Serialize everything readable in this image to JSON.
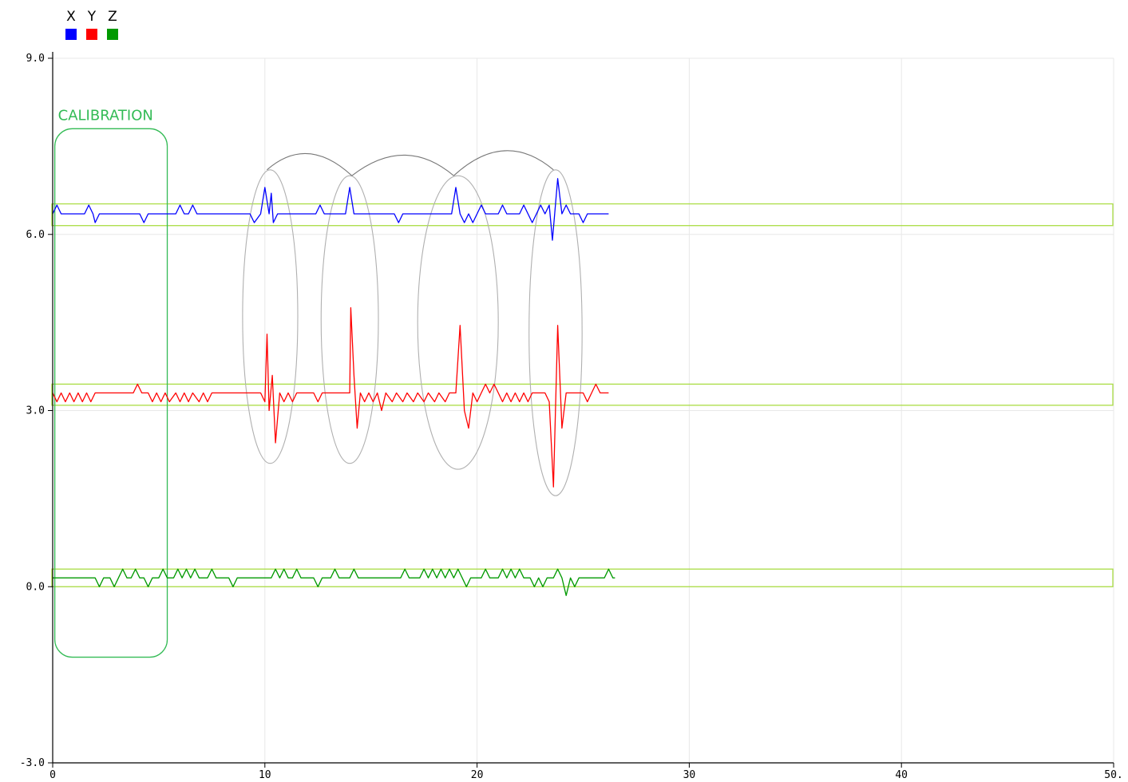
{
  "chart_data": {
    "type": "line",
    "xlim": [
      0,
      50
    ],
    "ylim": [
      -3,
      9
    ],
    "x_ticks": [
      0,
      10,
      20,
      30,
      40,
      50
    ],
    "x_tick_labels": [
      "0",
      "10",
      "20",
      "30",
      "40",
      "50."
    ],
    "y_ticks": [
      -3,
      0,
      3,
      6,
      9
    ],
    "y_tick_labels": [
      "-3.0",
      "0.0",
      "3.0",
      "6.0",
      "9.0"
    ],
    "grid": true,
    "legend_position": "top-left",
    "series": [
      {
        "name": "X",
        "color": "#0000ff",
        "points": [
          [
            0,
            6.35
          ],
          [
            0.2,
            6.5
          ],
          [
            0.4,
            6.35
          ],
          [
            1.5,
            6.35
          ],
          [
            1.7,
            6.5
          ],
          [
            1.9,
            6.35
          ],
          [
            2.0,
            6.2
          ],
          [
            2.2,
            6.35
          ],
          [
            4.1,
            6.35
          ],
          [
            4.3,
            6.2
          ],
          [
            4.5,
            6.35
          ],
          [
            5.8,
            6.35
          ],
          [
            6.0,
            6.5
          ],
          [
            6.2,
            6.35
          ],
          [
            6.4,
            6.35
          ],
          [
            6.6,
            6.5
          ],
          [
            6.8,
            6.35
          ],
          [
            9.3,
            6.35
          ],
          [
            9.5,
            6.2
          ],
          [
            9.8,
            6.35
          ],
          [
            10.0,
            6.8
          ],
          [
            10.2,
            6.35
          ],
          [
            10.3,
            6.7
          ],
          [
            10.4,
            6.2
          ],
          [
            10.6,
            6.35
          ],
          [
            12.4,
            6.35
          ],
          [
            12.6,
            6.5
          ],
          [
            12.8,
            6.35
          ],
          [
            13.8,
            6.35
          ],
          [
            14.0,
            6.8
          ],
          [
            14.2,
            6.35
          ],
          [
            16.1,
            6.35
          ],
          [
            16.3,
            6.2
          ],
          [
            16.5,
            6.35
          ],
          [
            18.8,
            6.35
          ],
          [
            19.0,
            6.8
          ],
          [
            19.2,
            6.35
          ],
          [
            19.4,
            6.2
          ],
          [
            19.6,
            6.35
          ],
          [
            19.8,
            6.2
          ],
          [
            20.0,
            6.35
          ],
          [
            20.2,
            6.5
          ],
          [
            20.4,
            6.35
          ],
          [
            21.0,
            6.35
          ],
          [
            21.2,
            6.5
          ],
          [
            21.4,
            6.35
          ],
          [
            22.0,
            6.35
          ],
          [
            22.2,
            6.5
          ],
          [
            22.4,
            6.35
          ],
          [
            22.6,
            6.2
          ],
          [
            22.8,
            6.35
          ],
          [
            23.0,
            6.5
          ],
          [
            23.2,
            6.35
          ],
          [
            23.4,
            6.5
          ],
          [
            23.55,
            5.9
          ],
          [
            23.8,
            6.95
          ],
          [
            24.0,
            6.35
          ],
          [
            24.2,
            6.5
          ],
          [
            24.4,
            6.35
          ],
          [
            24.8,
            6.35
          ],
          [
            25.0,
            6.2
          ],
          [
            25.2,
            6.35
          ],
          [
            26.2,
            6.35
          ]
        ]
      },
      {
        "name": "Y",
        "color": "#ff0000",
        "points": [
          [
            0,
            3.3
          ],
          [
            0.2,
            3.15
          ],
          [
            0.4,
            3.3
          ],
          [
            0.6,
            3.15
          ],
          [
            0.8,
            3.3
          ],
          [
            1.0,
            3.15
          ],
          [
            1.2,
            3.3
          ],
          [
            1.4,
            3.15
          ],
          [
            1.6,
            3.3
          ],
          [
            1.8,
            3.15
          ],
          [
            2.0,
            3.3
          ],
          [
            3.8,
            3.3
          ],
          [
            4.0,
            3.45
          ],
          [
            4.2,
            3.3
          ],
          [
            4.5,
            3.3
          ],
          [
            4.7,
            3.15
          ],
          [
            4.9,
            3.3
          ],
          [
            5.1,
            3.15
          ],
          [
            5.3,
            3.3
          ],
          [
            5.5,
            3.15
          ],
          [
            5.8,
            3.3
          ],
          [
            6.0,
            3.15
          ],
          [
            6.2,
            3.3
          ],
          [
            6.4,
            3.15
          ],
          [
            6.6,
            3.3
          ],
          [
            6.9,
            3.15
          ],
          [
            7.1,
            3.3
          ],
          [
            7.3,
            3.15
          ],
          [
            7.5,
            3.3
          ],
          [
            9.8,
            3.3
          ],
          [
            10.0,
            3.15
          ],
          [
            10.1,
            4.3
          ],
          [
            10.2,
            3.0
          ],
          [
            10.35,
            3.6
          ],
          [
            10.5,
            2.45
          ],
          [
            10.7,
            3.3
          ],
          [
            10.9,
            3.15
          ],
          [
            11.1,
            3.3
          ],
          [
            11.3,
            3.15
          ],
          [
            11.5,
            3.3
          ],
          [
            12.3,
            3.3
          ],
          [
            12.5,
            3.15
          ],
          [
            12.7,
            3.3
          ],
          [
            14.0,
            3.3
          ],
          [
            14.05,
            4.75
          ],
          [
            14.2,
            3.6
          ],
          [
            14.35,
            2.7
          ],
          [
            14.5,
            3.3
          ],
          [
            14.7,
            3.15
          ],
          [
            14.9,
            3.3
          ],
          [
            15.1,
            3.15
          ],
          [
            15.3,
            3.3
          ],
          [
            15.5,
            3.0
          ],
          [
            15.7,
            3.3
          ],
          [
            16.0,
            3.15
          ],
          [
            16.2,
            3.3
          ],
          [
            16.5,
            3.15
          ],
          [
            16.7,
            3.3
          ],
          [
            17.0,
            3.15
          ],
          [
            17.2,
            3.3
          ],
          [
            17.5,
            3.15
          ],
          [
            17.7,
            3.3
          ],
          [
            18.0,
            3.15
          ],
          [
            18.2,
            3.3
          ],
          [
            18.5,
            3.15
          ],
          [
            18.7,
            3.3
          ],
          [
            19.0,
            3.3
          ],
          [
            19.2,
            4.45
          ],
          [
            19.4,
            3.0
          ],
          [
            19.6,
            2.7
          ],
          [
            19.8,
            3.3
          ],
          [
            20.0,
            3.15
          ],
          [
            20.2,
            3.3
          ],
          [
            20.4,
            3.45
          ],
          [
            20.6,
            3.3
          ],
          [
            20.8,
            3.45
          ],
          [
            21.0,
            3.3
          ],
          [
            21.2,
            3.15
          ],
          [
            21.4,
            3.3
          ],
          [
            21.6,
            3.15
          ],
          [
            21.8,
            3.3
          ],
          [
            22.0,
            3.15
          ],
          [
            22.2,
            3.3
          ],
          [
            22.4,
            3.15
          ],
          [
            22.6,
            3.3
          ],
          [
            23.2,
            3.3
          ],
          [
            23.4,
            3.15
          ],
          [
            23.6,
            1.7
          ],
          [
            23.8,
            4.45
          ],
          [
            24.0,
            2.7
          ],
          [
            24.2,
            3.3
          ],
          [
            25.0,
            3.3
          ],
          [
            25.2,
            3.15
          ],
          [
            25.4,
            3.3
          ],
          [
            25.6,
            3.45
          ],
          [
            25.8,
            3.3
          ],
          [
            26.2,
            3.3
          ]
        ]
      },
      {
        "name": "Z",
        "color": "#009900",
        "points": [
          [
            0,
            0.15
          ],
          [
            2.0,
            0.15
          ],
          [
            2.2,
            0.0
          ],
          [
            2.4,
            0.15
          ],
          [
            2.7,
            0.15
          ],
          [
            2.9,
            0.0
          ],
          [
            3.1,
            0.15
          ],
          [
            3.3,
            0.3
          ],
          [
            3.5,
            0.15
          ],
          [
            3.7,
            0.15
          ],
          [
            3.9,
            0.3
          ],
          [
            4.1,
            0.15
          ],
          [
            4.3,
            0.15
          ],
          [
            4.5,
            0.0
          ],
          [
            4.7,
            0.15
          ],
          [
            5.0,
            0.15
          ],
          [
            5.2,
            0.3
          ],
          [
            5.4,
            0.15
          ],
          [
            5.7,
            0.15
          ],
          [
            5.9,
            0.3
          ],
          [
            6.1,
            0.15
          ],
          [
            6.3,
            0.3
          ],
          [
            6.5,
            0.15
          ],
          [
            6.7,
            0.3
          ],
          [
            6.9,
            0.15
          ],
          [
            7.3,
            0.15
          ],
          [
            7.5,
            0.3
          ],
          [
            7.7,
            0.15
          ],
          [
            8.3,
            0.15
          ],
          [
            8.5,
            0.0
          ],
          [
            8.7,
            0.15
          ],
          [
            10.3,
            0.15
          ],
          [
            10.5,
            0.3
          ],
          [
            10.7,
            0.15
          ],
          [
            10.9,
            0.3
          ],
          [
            11.1,
            0.15
          ],
          [
            11.3,
            0.15
          ],
          [
            11.5,
            0.3
          ],
          [
            11.7,
            0.15
          ],
          [
            12.3,
            0.15
          ],
          [
            12.5,
            0.0
          ],
          [
            12.7,
            0.15
          ],
          [
            13.1,
            0.15
          ],
          [
            13.3,
            0.3
          ],
          [
            13.5,
            0.15
          ],
          [
            14.0,
            0.15
          ],
          [
            14.2,
            0.3
          ],
          [
            14.4,
            0.15
          ],
          [
            16.4,
            0.15
          ],
          [
            16.6,
            0.3
          ],
          [
            16.8,
            0.15
          ],
          [
            17.3,
            0.15
          ],
          [
            17.5,
            0.3
          ],
          [
            17.7,
            0.15
          ],
          [
            17.9,
            0.3
          ],
          [
            18.1,
            0.15
          ],
          [
            18.3,
            0.3
          ],
          [
            18.5,
            0.15
          ],
          [
            18.7,
            0.3
          ],
          [
            18.9,
            0.15
          ],
          [
            19.1,
            0.3
          ],
          [
            19.3,
            0.15
          ],
          [
            19.5,
            0.0
          ],
          [
            19.7,
            0.15
          ],
          [
            20.2,
            0.15
          ],
          [
            20.4,
            0.3
          ],
          [
            20.6,
            0.15
          ],
          [
            21.0,
            0.15
          ],
          [
            21.2,
            0.3
          ],
          [
            21.4,
            0.15
          ],
          [
            21.6,
            0.3
          ],
          [
            21.8,
            0.15
          ],
          [
            22.0,
            0.3
          ],
          [
            22.2,
            0.15
          ],
          [
            22.5,
            0.15
          ],
          [
            22.7,
            0.0
          ],
          [
            22.9,
            0.15
          ],
          [
            23.1,
            0.0
          ],
          [
            23.3,
            0.15
          ],
          [
            23.6,
            0.15
          ],
          [
            23.8,
            0.3
          ],
          [
            24.0,
            0.15
          ],
          [
            24.2,
            -0.15
          ],
          [
            24.4,
            0.15
          ],
          [
            24.6,
            0.0
          ],
          [
            24.8,
            0.15
          ],
          [
            26.0,
            0.15
          ],
          [
            26.2,
            0.3
          ],
          [
            26.4,
            0.15
          ],
          [
            26.5,
            0.15
          ]
        ]
      }
    ],
    "annotations": {
      "calibration_label": "CALIBRATION",
      "calibration_color": "#33bb55",
      "baseline_band_color": "#aadd44",
      "gesture_circle_color": "#b0b0b0",
      "gesture_arc_color": "#777777"
    }
  }
}
